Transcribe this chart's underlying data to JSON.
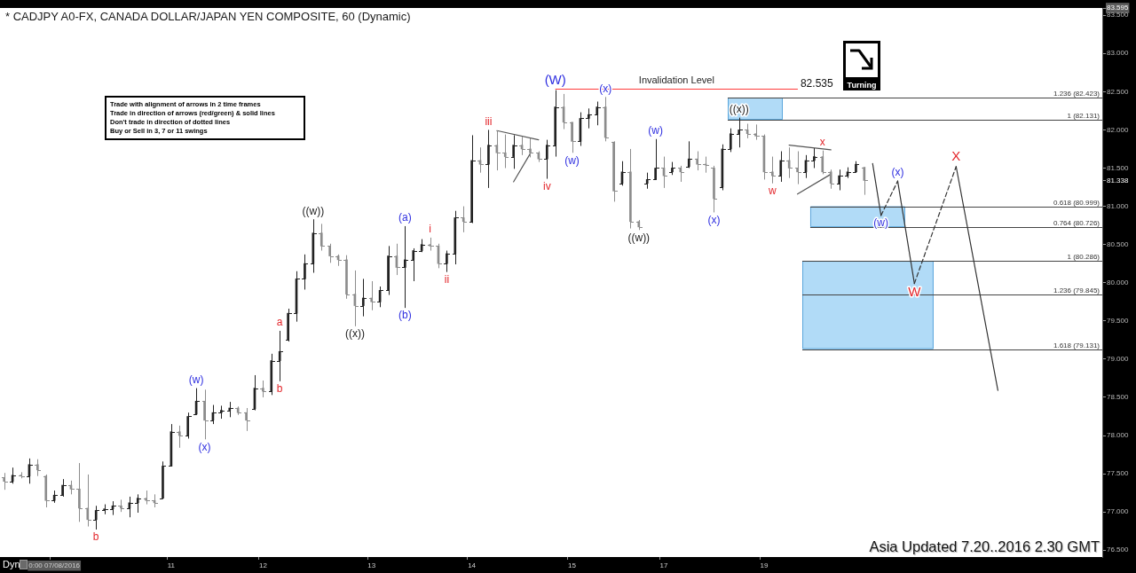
{
  "chart_data": {
    "type": "candlestick",
    "title": "* CADJPY A0-FX, CANADA DOLLAR/JAPAN YEN COMPOSITE, 60 (Dynamic)",
    "categories": [
      null,
      null,
      null,
      null,
      null,
      null,
      "0:00 07/08/2016",
      null,
      null,
      null,
      null,
      null,
      null,
      null,
      null,
      null,
      null,
      null,
      null,
      null,
      "11",
      null,
      null,
      null,
      null,
      null,
      null,
      null,
      null,
      null,
      null,
      "12",
      null,
      null,
      null,
      null,
      null,
      null,
      null,
      null,
      null,
      null,
      null,
      null,
      "13",
      null,
      null,
      null,
      null,
      null,
      null,
      null,
      null,
      null,
      null,
      null,
      "14",
      null,
      null,
      null,
      null,
      null,
      null,
      null,
      null,
      null,
      null,
      null,
      "15",
      null,
      null,
      null,
      null,
      null,
      null,
      null,
      null,
      null,
      null,
      "17",
      null,
      null,
      null,
      null,
      null,
      null,
      null,
      null,
      null,
      null,
      null,
      "19",
      null,
      null,
      null,
      null,
      null,
      null,
      null,
      null,
      null,
      null,
      null,
      null,
      null,
      null,
      null,
      null,
      null,
      null,
      null,
      null,
      null,
      null,
      null,
      null,
      null,
      null,
      null,
      null,
      null,
      null,
      null,
      null,
      null,
      null,
      null,
      null,
      null,
      null,
      null,
      null
    ],
    "ohlc": [
      [
        77.45,
        77.51,
        77.29,
        77.4
      ],
      [
        77.4,
        77.58,
        77.37,
        77.48
      ],
      [
        77.48,
        77.52,
        77.44,
        77.47
      ],
      [
        77.47,
        77.7,
        77.37,
        77.62
      ],
      [
        77.62,
        77.69,
        77.47,
        77.55
      ],
      [
        77.47,
        77.49,
        77.06,
        77.15
      ],
      [
        77.15,
        77.28,
        77.12,
        77.22
      ],
      [
        77.22,
        77.43,
        77.2,
        77.35
      ],
      [
        77.35,
        77.41,
        77.23,
        77.3
      ],
      [
        77.3,
        77.64,
        76.87,
        77.05
      ],
      [
        77.05,
        77.49,
        76.81,
        76.9
      ],
      [
        76.9,
        77.08,
        76.77,
        77.02
      ],
      [
        77.02,
        77.1,
        76.97,
        77.04
      ],
      [
        77.04,
        77.14,
        76.96,
        77.08
      ],
      [
        77.08,
        77.16,
        77.0,
        77.05
      ],
      [
        77.05,
        77.2,
        76.93,
        77.12
      ],
      [
        77.12,
        77.23,
        76.99,
        77.18
      ],
      [
        77.18,
        77.28,
        77.1,
        77.15
      ],
      [
        77.15,
        77.23,
        77.06,
        77.12
      ],
      [
        77.18,
        77.66,
        77.17,
        77.6
      ],
      [
        77.6,
        78.15,
        77.6,
        78.05
      ],
      [
        78.05,
        78.13,
        77.84,
        78.0
      ],
      [
        78.0,
        78.3,
        77.96,
        78.25
      ],
      [
        78.28,
        78.62,
        78.27,
        78.45
      ],
      [
        78.45,
        78.6,
        77.95,
        78.2
      ],
      [
        78.2,
        78.4,
        78.15,
        78.3
      ],
      [
        78.3,
        78.39,
        78.22,
        78.33
      ],
      [
        78.33,
        78.44,
        78.24,
        78.36
      ],
      [
        78.36,
        78.38,
        78.27,
        78.3
      ],
      [
        78.3,
        78.36,
        78.06,
        78.2
      ],
      [
        78.35,
        78.79,
        78.33,
        78.62
      ],
      [
        78.62,
        78.72,
        78.5,
        78.58
      ],
      [
        78.58,
        79.07,
        78.53,
        78.98
      ],
      [
        78.98,
        79.37,
        78.71,
        79.1
      ],
      [
        79.25,
        79.66,
        79.23,
        79.6
      ],
      [
        79.6,
        80.15,
        79.49,
        80.05
      ],
      [
        80.05,
        80.37,
        79.91,
        80.25
      ],
      [
        80.25,
        80.83,
        80.13,
        80.65
      ],
      [
        80.65,
        80.77,
        80.42,
        80.48
      ],
      [
        80.48,
        80.51,
        80.26,
        80.35
      ],
      [
        80.35,
        80.37,
        80.22,
        80.3
      ],
      [
        80.3,
        80.36,
        79.79,
        79.85
      ],
      [
        79.85,
        80.16,
        79.43,
        79.7
      ],
      [
        79.7,
        80.05,
        79.56,
        79.8
      ],
      [
        79.8,
        80.02,
        79.64,
        79.75
      ],
      [
        79.75,
        79.95,
        79.68,
        79.9
      ],
      [
        79.9,
        80.48,
        79.84,
        80.35
      ],
      [
        80.35,
        80.51,
        80.1,
        80.2
      ],
      [
        80.2,
        80.74,
        79.67,
        80.3
      ],
      [
        80.3,
        80.45,
        80.02,
        80.42
      ],
      [
        80.42,
        80.57,
        80.4,
        80.5
      ],
      [
        80.5,
        80.59,
        80.42,
        80.48
      ],
      [
        80.48,
        80.51,
        80.19,
        80.25
      ],
      [
        80.25,
        80.42,
        80.14,
        80.38
      ],
      [
        80.38,
        80.94,
        80.24,
        80.85
      ],
      [
        80.85,
        81.0,
        80.66,
        80.8
      ],
      [
        80.8,
        81.93,
        80.78,
        81.6
      ],
      [
        81.6,
        81.77,
        81.44,
        81.55
      ],
      [
        81.55,
        82.0,
        81.24,
        81.8
      ],
      [
        81.8,
        81.99,
        81.47,
        81.7
      ],
      [
        81.7,
        81.94,
        81.5,
        81.65
      ],
      [
        81.65,
        81.93,
        81.49,
        81.8
      ],
      [
        81.8,
        81.91,
        81.67,
        81.75
      ],
      [
        81.75,
        81.89,
        81.64,
        81.7
      ],
      [
        81.7,
        81.72,
        81.58,
        81.62
      ],
      [
        81.62,
        81.87,
        81.36,
        81.8
      ],
      [
        81.8,
        82.52,
        81.65,
        82.3
      ],
      [
        82.3,
        82.47,
        82.01,
        82.1
      ],
      [
        82.1,
        82.1,
        81.7,
        81.85
      ],
      [
        81.85,
        82.23,
        81.79,
        82.15
      ],
      [
        82.15,
        82.28,
        82.02,
        82.2
      ],
      [
        82.2,
        82.37,
        82.06,
        82.3
      ],
      [
        82.3,
        82.43,
        81.85,
        81.9
      ],
      [
        81.84,
        81.85,
        81.06,
        81.2
      ],
      [
        81.3,
        81.59,
        81.27,
        81.45
      ],
      [
        81.45,
        81.75,
        80.71,
        80.8
      ],
      [
        80.8,
        80.82,
        80.69,
        80.73
      ],
      [
        81.3,
        81.44,
        81.23,
        81.35
      ],
      [
        81.35,
        81.88,
        81.35,
        81.5
      ],
      [
        81.5,
        81.65,
        81.24,
        81.4
      ],
      [
        81.45,
        81.58,
        81.41,
        81.5
      ],
      [
        81.5,
        81.53,
        81.32,
        81.45
      ],
      [
        81.52,
        81.85,
        81.5,
        81.62
      ],
      [
        81.62,
        81.72,
        81.47,
        81.55
      ],
      [
        81.55,
        81.65,
        81.44,
        81.54
      ],
      [
        81.5,
        81.53,
        80.92,
        81.1
      ],
      [
        81.25,
        81.81,
        81.21,
        81.75
      ],
      [
        81.75,
        82.02,
        81.71,
        81.95
      ],
      [
        81.95,
        82.16,
        81.77,
        82.0
      ],
      [
        82.0,
        82.08,
        81.89,
        81.95
      ],
      [
        81.95,
        82.07,
        81.87,
        81.92
      ],
      [
        81.92,
        81.94,
        81.35,
        81.45
      ],
      [
        81.45,
        81.65,
        81.3,
        81.4
      ],
      [
        81.4,
        81.72,
        81.32,
        81.6
      ],
      [
        81.6,
        81.77,
        81.37,
        81.5
      ],
      [
        81.5,
        81.72,
        81.29,
        81.45
      ],
      [
        81.45,
        81.67,
        81.37,
        81.6
      ],
      [
        81.6,
        81.76,
        81.5,
        81.65
      ],
      [
        81.65,
        81.73,
        81.42,
        81.45
      ],
      [
        81.45,
        81.48,
        81.23,
        81.3
      ],
      [
        81.3,
        81.48,
        81.21,
        81.4
      ],
      [
        81.4,
        81.51,
        81.37,
        81.45
      ],
      [
        81.45,
        81.59,
        81.44,
        81.55
      ],
      [
        81.51,
        81.51,
        81.15,
        81.338
      ],
      null,
      null,
      null,
      null,
      null,
      null,
      null,
      null,
      null,
      null,
      null,
      null,
      null,
      null,
      null,
      null,
      null,
      null,
      null,
      null,
      null,
      null,
      null,
      null,
      null,
      null,
      null,
      null
    ],
    "colors": [
      "#8c8c8c",
      "#222222",
      "#8c8c8c",
      "#222222",
      "#8c8c8c",
      "#8c8c8c",
      "#222222",
      "#222222",
      "#8c8c8c",
      "#8c8c8c",
      "#8c8c8c",
      "#222222",
      "#222222",
      "#222222",
      "#8c8c8c",
      "#222222",
      "#222222",
      "#8c8c8c",
      "#8c8c8c",
      "#222222",
      "#222222",
      "#8c8c8c",
      "#222222",
      "#222222",
      "#8c8c8c",
      "#222222",
      "#222222",
      "#222222",
      "#8c8c8c",
      "#8c8c8c",
      "#222222",
      "#8c8c8c",
      "#222222",
      "#222222",
      "#222222",
      "#222222",
      "#222222",
      "#222222",
      "#8c8c8c",
      "#8c8c8c",
      "#8c8c8c",
      "#8c8c8c",
      "#8c8c8c",
      "#222222",
      "#8c8c8c",
      "#222222",
      "#222222",
      "#8c8c8c",
      "#222222",
      "#222222",
      "#222222",
      "#8c8c8c",
      "#8c8c8c",
      "#222222",
      "#222222",
      "#8c8c8c",
      "#222222",
      "#8c8c8c",
      "#222222",
      "#8c8c8c",
      "#8c8c8c",
      "#222222",
      "#8c8c8c",
      "#8c8c8c",
      "#8c8c8c",
      "#222222",
      "#222222",
      "#8c8c8c",
      "#8c8c8c",
      "#222222",
      "#222222",
      "#222222",
      "#8c8c8c",
      "#8c8c8c",
      "#222222",
      "#8c8c8c",
      "#8c8c8c",
      "#222222",
      "#222222",
      "#8c8c8c",
      "#222222",
      "#8c8c8c",
      "#222222",
      "#8c8c8c",
      "#8c8c8c",
      "#8c8c8c",
      "#222222",
      "#222222",
      "#222222",
      "#8c8c8c",
      "#8c8c8c",
      "#8c8c8c",
      "#8c8c8c",
      "#222222",
      "#8c8c8c",
      "#8c8c8c",
      "#222222",
      "#222222",
      "#8c8c8c",
      "#8c8c8c",
      "#222222",
      "#222222",
      "#222222",
      "#8c8c8c",
      null,
      null,
      null,
      null,
      null,
      null,
      null,
      null,
      null,
      null,
      null,
      null,
      null,
      null,
      null,
      null,
      null,
      null,
      null,
      null,
      null,
      null,
      null,
      null,
      null,
      null,
      null,
      null
    ],
    "series": [
      {
        "type": "line",
        "color": "#333333",
        "line_style": "solid",
        "values": [
          null,
          null,
          null,
          null,
          null,
          null,
          null,
          null,
          null,
          null,
          null,
          null,
          null,
          null,
          null,
          null,
          null,
          null,
          null,
          null,
          null,
          null,
          null,
          null,
          null,
          null,
          null,
          null,
          null,
          null,
          null,
          null,
          null,
          null,
          null,
          null,
          null,
          null,
          null,
          null,
          null,
          null,
          null,
          null,
          null,
          null,
          null,
          null,
          null,
          null,
          null,
          null,
          null,
          null,
          null,
          null,
          null,
          null,
          null,
          null,
          null,
          null,
          null,
          null,
          null,
          null,
          null,
          null,
          null,
          null,
          null,
          null,
          null,
          null,
          null,
          null,
          null,
          null,
          null,
          null,
          null,
          null,
          null,
          null,
          null,
          null,
          null,
          null,
          null,
          null,
          null,
          null,
          null,
          null,
          null,
          null,
          null,
          null,
          null,
          null,
          null,
          null,
          null,
          null,
          81.56,
          80.88,
          null,
          null,
          null,
          null,
          null,
          null,
          null,
          null,
          null,
          null,
          null,
          null,
          null,
          null,
          null,
          null,
          null,
          null,
          null,
          null,
          null,
          null,
          null,
          null,
          null,
          null
        ]
      },
      {
        "type": "line",
        "color": "#333333",
        "line_style": "dashed",
        "values": [
          null,
          null,
          null,
          null,
          null,
          null,
          null,
          null,
          null,
          null,
          null,
          null,
          null,
          null,
          null,
          null,
          null,
          null,
          null,
          null,
          null,
          null,
          null,
          null,
          null,
          null,
          null,
          null,
          null,
          null,
          null,
          null,
          null,
          null,
          null,
          null,
          null,
          null,
          null,
          null,
          null,
          null,
          null,
          null,
          null,
          null,
          null,
          null,
          null,
          null,
          null,
          null,
          null,
          null,
          null,
          null,
          null,
          null,
          null,
          null,
          null,
          null,
          null,
          null,
          null,
          null,
          null,
          null,
          null,
          null,
          null,
          null,
          null,
          null,
          null,
          null,
          null,
          null,
          null,
          null,
          null,
          null,
          null,
          null,
          null,
          null,
          null,
          null,
          null,
          null,
          null,
          null,
          null,
          null,
          null,
          null,
          null,
          null,
          null,
          null,
          null,
          null,
          null,
          null,
          null,
          80.88,
          null,
          81.33,
          null,
          null,
          null,
          null,
          null,
          null,
          null,
          null,
          null,
          null,
          null,
          null,
          null,
          null,
          null,
          null,
          null,
          null,
          null,
          null,
          null,
          null,
          null,
          null
        ]
      },
      {
        "type": "line",
        "color": "#333333",
        "line_style": "solid",
        "values": [
          null,
          null,
          null,
          null,
          null,
          null,
          null,
          null,
          null,
          null,
          null,
          null,
          null,
          null,
          null,
          null,
          null,
          null,
          null,
          null,
          null,
          null,
          null,
          null,
          null,
          null,
          null,
          null,
          null,
          null,
          null,
          null,
          null,
          null,
          null,
          null,
          null,
          null,
          null,
          null,
          null,
          null,
          null,
          null,
          null,
          null,
          null,
          null,
          null,
          null,
          null,
          null,
          null,
          null,
          null,
          null,
          null,
          null,
          null,
          null,
          null,
          null,
          null,
          null,
          null,
          null,
          null,
          null,
          null,
          null,
          null,
          null,
          null,
          null,
          null,
          null,
          null,
          null,
          null,
          null,
          null,
          null,
          null,
          null,
          null,
          null,
          null,
          null,
          null,
          null,
          null,
          null,
          null,
          null,
          null,
          null,
          null,
          null,
          null,
          null,
          null,
          null,
          null,
          null,
          null,
          null,
          null,
          81.33,
          null,
          79.99,
          null,
          null,
          null,
          null,
          null,
          null,
          null,
          null,
          null,
          null,
          null,
          null,
          null,
          null,
          null,
          null,
          null,
          null,
          null,
          null,
          null,
          null
        ]
      },
      {
        "type": "line",
        "color": "#333333",
        "line_style": "dashed",
        "values": [
          null,
          null,
          null,
          null,
          null,
          null,
          null,
          null,
          null,
          null,
          null,
          null,
          null,
          null,
          null,
          null,
          null,
          null,
          null,
          null,
          null,
          null,
          null,
          null,
          null,
          null,
          null,
          null,
          null,
          null,
          null,
          null,
          null,
          null,
          null,
          null,
          null,
          null,
          null,
          null,
          null,
          null,
          null,
          null,
          null,
          null,
          null,
          null,
          null,
          null,
          null,
          null,
          null,
          null,
          null,
          null,
          null,
          null,
          null,
          null,
          null,
          null,
          null,
          null,
          null,
          null,
          null,
          null,
          null,
          null,
          null,
          null,
          null,
          null,
          null,
          null,
          null,
          null,
          null,
          null,
          null,
          null,
          null,
          null,
          null,
          null,
          null,
          null,
          null,
          null,
          null,
          null,
          null,
          null,
          null,
          null,
          null,
          null,
          null,
          null,
          null,
          null,
          null,
          null,
          null,
          null,
          null,
          null,
          null,
          79.99,
          null,
          null,
          null,
          null,
          81.52,
          null,
          null,
          null,
          null,
          null,
          null,
          null,
          null,
          null,
          null,
          null,
          null,
          null,
          null,
          null,
          null,
          null
        ]
      },
      {
        "type": "line",
        "color": "#333333",
        "line_style": "solid",
        "values": [
          null,
          null,
          null,
          null,
          null,
          null,
          null,
          null,
          null,
          null,
          null,
          null,
          null,
          null,
          null,
          null,
          null,
          null,
          null,
          null,
          null,
          null,
          null,
          null,
          null,
          null,
          null,
          null,
          null,
          null,
          null,
          null,
          null,
          null,
          null,
          null,
          null,
          null,
          null,
          null,
          null,
          null,
          null,
          null,
          null,
          null,
          null,
          null,
          null,
          null,
          null,
          null,
          null,
          null,
          null,
          null,
          null,
          null,
          null,
          null,
          null,
          null,
          null,
          null,
          null,
          null,
          null,
          null,
          null,
          null,
          null,
          null,
          null,
          null,
          null,
          null,
          null,
          null,
          null,
          null,
          null,
          null,
          null,
          null,
          null,
          null,
          null,
          null,
          null,
          null,
          null,
          null,
          null,
          null,
          null,
          null,
          null,
          null,
          null,
          null,
          null,
          null,
          null,
          null,
          null,
          null,
          null,
          null,
          null,
          null,
          null,
          null,
          null,
          null,
          81.52,
          null,
          null,
          null,
          null,
          78.59,
          null,
          null,
          null,
          null,
          null,
          null,
          null,
          null,
          null,
          null,
          null,
          null
        ]
      },
      {
        "type": "line",
        "color": "#555555",
        "line_style": "solid",
        "values": [
          null,
          null,
          null,
          null,
          null,
          null,
          null,
          null,
          null,
          null,
          null,
          null,
          null,
          null,
          null,
          null,
          null,
          null,
          null,
          null,
          null,
          null,
          null,
          null,
          null,
          null,
          null,
          null,
          null,
          null,
          null,
          null,
          null,
          null,
          null,
          null,
          null,
          null,
          null,
          null,
          null,
          null,
          null,
          null,
          null,
          null,
          null,
          null,
          null,
          null,
          null,
          null,
          null,
          null,
          null,
          null,
          null,
          null,
          null,
          81.99,
          null,
          null,
          null,
          null,
          81.87,
          null,
          null,
          null,
          null,
          null,
          null,
          null,
          null,
          null,
          null,
          null,
          null,
          null,
          null,
          null,
          null,
          null,
          null,
          null,
          null,
          null,
          null,
          null,
          null,
          null,
          null,
          null,
          null,
          null,
          null,
          null,
          null,
          null,
          null,
          null,
          null,
          null,
          null,
          null,
          null,
          null,
          null,
          null,
          null,
          null,
          null,
          null,
          null,
          null,
          null,
          null,
          null,
          null,
          null,
          null,
          null,
          null,
          null,
          null,
          null,
          null,
          null,
          null,
          null,
          null,
          null,
          null
        ]
      },
      {
        "type": "line",
        "color": "#555555",
        "line_style": "solid",
        "values": [
          null,
          null,
          null,
          null,
          null,
          null,
          null,
          null,
          null,
          null,
          null,
          null,
          null,
          null,
          null,
          null,
          null,
          null,
          null,
          null,
          null,
          null,
          null,
          null,
          null,
          null,
          null,
          null,
          null,
          null,
          null,
          null,
          null,
          null,
          null,
          null,
          null,
          null,
          null,
          null,
          null,
          null,
          null,
          null,
          null,
          null,
          null,
          null,
          null,
          null,
          null,
          null,
          null,
          null,
          null,
          null,
          null,
          null,
          null,
          null,
          null,
          81.32,
          null,
          81.69,
          null,
          null,
          null,
          null,
          null,
          null,
          null,
          null,
          null,
          null,
          null,
          null,
          null,
          null,
          null,
          null,
          null,
          null,
          null,
          null,
          null,
          null,
          null,
          null,
          null,
          null,
          null,
          null,
          null,
          null,
          null,
          null,
          null,
          null,
          null,
          null,
          null,
          null,
          null,
          null,
          null,
          null,
          null,
          null,
          null,
          null,
          null,
          null,
          null,
          null,
          null,
          null,
          null,
          null,
          null,
          null,
          null,
          null,
          null,
          null,
          null,
          null,
          null,
          null,
          null,
          null,
          null,
          null
        ]
      },
      {
        "type": "line",
        "color": "#555555",
        "line_style": "solid",
        "values": [
          null,
          null,
          null,
          null,
          null,
          null,
          null,
          null,
          null,
          null,
          null,
          null,
          null,
          null,
          null,
          null,
          null,
          null,
          null,
          null,
          null,
          null,
          null,
          null,
          null,
          null,
          null,
          null,
          null,
          null,
          null,
          null,
          null,
          null,
          null,
          null,
          null,
          null,
          null,
          null,
          null,
          null,
          null,
          null,
          null,
          null,
          null,
          null,
          null,
          null,
          null,
          null,
          null,
          null,
          null,
          null,
          null,
          null,
          null,
          null,
          null,
          null,
          null,
          null,
          null,
          null,
          null,
          null,
          null,
          null,
          null,
          null,
          null,
          null,
          null,
          null,
          null,
          null,
          null,
          null,
          null,
          null,
          null,
          null,
          null,
          null,
          null,
          null,
          null,
          null,
          null,
          null,
          null,
          null,
          81.8,
          null,
          null,
          null,
          null,
          81.74,
          null,
          null,
          null,
          null,
          null,
          null,
          null,
          null,
          null,
          null,
          null,
          null,
          null,
          null,
          null,
          null,
          null,
          null,
          null,
          null,
          null,
          null,
          null,
          null,
          null,
          null,
          null,
          null,
          null,
          null,
          null,
          null
        ]
      },
      {
        "type": "line",
        "color": "#555555",
        "line_style": "solid",
        "values": [
          null,
          null,
          null,
          null,
          null,
          null,
          null,
          null,
          null,
          null,
          null,
          null,
          null,
          null,
          null,
          null,
          null,
          null,
          null,
          null,
          null,
          null,
          null,
          null,
          null,
          null,
          null,
          null,
          null,
          null,
          null,
          null,
          null,
          null,
          null,
          null,
          null,
          null,
          null,
          null,
          null,
          null,
          null,
          null,
          null,
          null,
          null,
          null,
          null,
          null,
          null,
          null,
          null,
          null,
          null,
          null,
          null,
          null,
          null,
          null,
          null,
          null,
          null,
          null,
          null,
          null,
          null,
          null,
          null,
          null,
          null,
          null,
          null,
          null,
          null,
          null,
          null,
          null,
          null,
          null,
          null,
          null,
          null,
          null,
          null,
          null,
          null,
          null,
          null,
          null,
          null,
          null,
          null,
          null,
          null,
          81.16,
          null,
          null,
          null,
          81.42,
          null,
          null,
          null,
          null,
          null,
          null,
          null,
          null,
          null,
          null,
          null,
          null,
          null,
          null,
          null,
          null,
          null,
          null,
          null,
          null,
          null,
          null,
          null,
          null,
          null,
          null,
          null,
          null,
          null,
          null,
          null,
          null
        ]
      }
    ],
    "ylim": [
      76.41,
      83.595
    ],
    "yticks": [
      {
        "value": 83.595,
        "label": "83.595"
      },
      {
        "value": 83.5,
        "label": "83.500"
      },
      {
        "value": 83,
        "label": "83.000"
      },
      {
        "value": 82.5,
        "label": "82.500"
      },
      {
        "value": 82,
        "label": "82.000"
      },
      {
        "value": 81.5,
        "label": "81.500"
      },
      {
        "value": 81.338,
        "label": "81.338"
      },
      {
        "value": 81,
        "label": "81.000"
      },
      {
        "value": 80.5,
        "label": "80.500"
      },
      {
        "value": 80,
        "label": "80.000"
      },
      {
        "value": 79.5,
        "label": "79.500"
      },
      {
        "value": 79,
        "label": "79.000"
      },
      {
        "value": 78.5,
        "label": "78.500"
      },
      {
        "value": 78,
        "label": "78.000"
      },
      {
        "value": 77.5,
        "label": "77.500"
      },
      {
        "value": 77,
        "label": "77.000"
      },
      {
        "value": 76.5,
        "label": "76.500"
      }
    ],
    "bands": [
      {
        "axis": "y",
        "from": 82.131,
        "to": 82.423,
        "color": "#a9d7f6"
      },
      {
        "axis": "y",
        "from": 80.726,
        "to": 80.999,
        "color": "#a9d7f6"
      },
      {
        "axis": "y",
        "from": 79.131,
        "to": 80.286,
        "color": "#a9d7f6"
      }
    ],
    "ref_lines": [
      {
        "axis": "y",
        "value": 82.535,
        "label": "Invalidation Level",
        "color": "#ff3b3b"
      },
      {
        "axis": "y",
        "value": 82.423,
        "label": "1.236 (82.423)",
        "color": "#444444"
      },
      {
        "axis": "y",
        "value": 82.131,
        "label": "1 (82.131)",
        "color": "#444444"
      },
      {
        "axis": "y",
        "value": 80.999,
        "label": "0.618 (80.999)",
        "color": "#444444"
      },
      {
        "axis": "y",
        "value": 80.726,
        "label": "0.764 (80.726)",
        "color": "#444444"
      },
      {
        "axis": "y",
        "value": 80.286,
        "label": "1 (80.286)",
        "color": "#444444"
      },
      {
        "axis": "y",
        "value": 79.845,
        "label": "1.236 (79.845)",
        "color": "#444444"
      },
      {
        "axis": "y",
        "value": 79.131,
        "label": "1.618 (79.131)",
        "color": "#444444"
      }
    ],
    "annotations": [
      "Trade with alignment of arrows in 2 time frames",
      "Trade in direction of arrows (red/green) & solid lines",
      "Don't trade in direction of dotted lines",
      "Buy or Sell in 3, 7 or 11 swings",
      "Turning",
      "Asia Updated 7.20..2016 2.30 GMT",
      "Dyn",
      "82.535",
      {
        "text": "b",
        "y": 76.77
      },
      {
        "text": "(w)",
        "y": 78.62
      },
      {
        "text": "(x)",
        "y": 77.95
      },
      {
        "text": "a",
        "y": 79.37
      },
      {
        "text": "b",
        "y": 78.71
      },
      {
        "text": "((w))",
        "y": 80.83
      },
      {
        "text": "((x))",
        "y": 79.43
      },
      {
        "text": "(a)",
        "y": 80.74
      },
      {
        "text": "(b)",
        "y": 79.67
      },
      {
        "text": "i",
        "y": 80.59
      },
      {
        "text": "ii",
        "y": 80.14
      },
      {
        "text": "iii",
        "y": 82.0
      },
      {
        "text": "iv",
        "y": 81.36
      },
      {
        "text": "(W)",
        "y": 82.52
      },
      {
        "text": "(w)",
        "y": 81.7
      },
      {
        "text": "(x)",
        "y": 82.43
      },
      {
        "text": "((w))",
        "y": 80.69
      },
      {
        "text": "(w)",
        "y": 81.88
      },
      {
        "text": "(x)",
        "y": 80.92
      },
      {
        "text": "((x))",
        "y": 82.16
      },
      {
        "text": "w",
        "y": 81.3
      },
      {
        "text": "x",
        "y": 81.73
      },
      {
        "text": "(w)",
        "y": 80.88
      },
      {
        "text": "(x)",
        "y": 81.33
      },
      {
        "text": "W",
        "y": 79.99
      },
      {
        "text": "X",
        "y": 81.52
      }
    ]
  }
}
